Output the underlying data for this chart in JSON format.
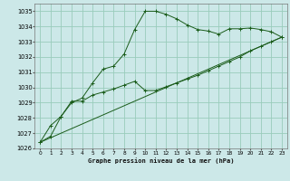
{
  "title": "Graphe pression niveau de la mer (hPa)",
  "bg_color": "#cce8e8",
  "grid_color": "#99ccbb",
  "line_color": "#1a5c1a",
  "xlim": [
    -0.5,
    23.5
  ],
  "ylim": [
    1026,
    1035.5
  ],
  "xticks": [
    0,
    1,
    2,
    3,
    4,
    5,
    6,
    7,
    8,
    9,
    10,
    11,
    12,
    13,
    14,
    15,
    16,
    17,
    18,
    19,
    20,
    21,
    22,
    23
  ],
  "yticks": [
    1026,
    1027,
    1028,
    1029,
    1030,
    1031,
    1032,
    1033,
    1034,
    1035
  ],
  "series1_x": [
    0,
    1,
    2,
    3,
    4,
    5,
    6,
    7,
    8,
    9,
    10,
    11,
    12,
    13,
    14,
    15,
    16,
    17,
    18,
    19,
    20,
    21,
    22,
    23
  ],
  "series1_y": [
    1026.4,
    1027.5,
    1028.1,
    1029.0,
    1029.3,
    1030.3,
    1031.2,
    1031.4,
    1032.2,
    1033.8,
    1035.0,
    1035.0,
    1034.8,
    1034.5,
    1034.1,
    1033.8,
    1033.7,
    1033.5,
    1033.85,
    1033.85,
    1033.9,
    1033.8,
    1033.65,
    1033.3
  ],
  "series2_x": [
    0,
    1,
    2,
    3,
    4,
    5,
    6,
    7,
    8,
    9,
    10,
    11,
    12,
    13,
    14,
    15,
    16,
    17,
    18,
    19,
    20,
    21,
    22,
    23
  ],
  "series2_y": [
    1026.4,
    1026.8,
    1028.1,
    1029.1,
    1029.1,
    1029.5,
    1029.7,
    1029.9,
    1030.15,
    1030.4,
    1029.8,
    1029.8,
    1030.05,
    1030.3,
    1030.55,
    1030.8,
    1031.1,
    1031.4,
    1031.7,
    1032.0,
    1032.4,
    1032.7,
    1033.0,
    1033.3
  ],
  "series3_x": [
    0,
    23
  ],
  "series3_y": [
    1026.4,
    1033.3
  ]
}
